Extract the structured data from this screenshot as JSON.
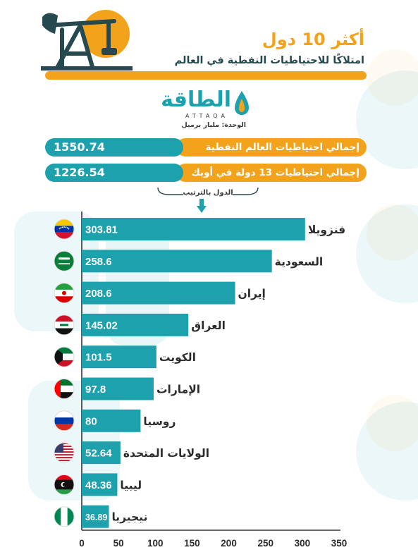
{
  "header": {
    "title": "أكثر 10 دول",
    "subtitle": "امتلاكًا للاحتياطيات النفطية في العالم"
  },
  "logo": {
    "text": "الطاقة",
    "latin": "ATTAQA"
  },
  "unit_label": "الوحدة: مليار برميل",
  "totals": [
    {
      "label": "إجمالي احتياطيات العالم النفطية",
      "value": "1550.74"
    },
    {
      "label": "إجمالي احتياطيات 13 دولة في أوبك",
      "value": "1226.54"
    }
  ],
  "ranking_label": "الدول بالترتيب",
  "colors": {
    "accent": "#f2a31b",
    "bar": "#1da1ad",
    "dark": "#26484f"
  },
  "chart_data": {
    "type": "bar",
    "orientation": "horizontal",
    "categories": [
      "فنزويلا",
      "السعودية",
      "إيران",
      "العراق",
      "الكويت",
      "الإمارات",
      "روسيا",
      "الولايات المتحدة",
      "ليبيا",
      "نيجيريا"
    ],
    "values": [
      303.81,
      258.6,
      208.6,
      145.02,
      101.5,
      97.8,
      80,
      52.64,
      48.36,
      36.89
    ],
    "value_labels": [
      "303.81",
      "258.6",
      "208.6",
      "145.02",
      "101.5",
      "97.8",
      "80",
      "52.64",
      "48.36",
      "36.89"
    ],
    "flags": [
      "venezuela-flag",
      "saudi-arabia-flag",
      "iran-flag",
      "iraq-flag",
      "kuwait-flag",
      "uae-flag",
      "russia-flag",
      "usa-flag",
      "libya-flag",
      "nigeria-flag"
    ],
    "xlim": [
      0,
      350
    ],
    "xticks": [
      0,
      50,
      100,
      150,
      200,
      250,
      300,
      350
    ],
    "title": "",
    "xlabel": "",
    "ylabel": "",
    "grid": false
  }
}
